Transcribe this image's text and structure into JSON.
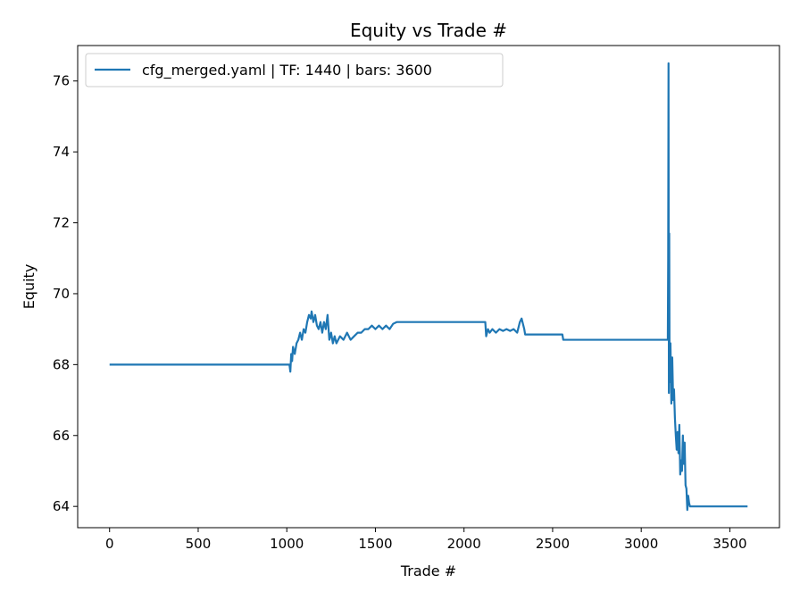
{
  "chart_data": {
    "type": "line",
    "title": "Equity vs Trade #",
    "xlabel": "Trade #",
    "ylabel": "Equity",
    "xlim": [
      -180,
      3780
    ],
    "ylim": [
      63.4,
      77.0
    ],
    "xticks": [
      0,
      500,
      1000,
      1500,
      2000,
      2500,
      3000,
      3500
    ],
    "yticks": [
      64,
      66,
      68,
      70,
      72,
      74,
      76
    ],
    "grid": false,
    "legend_position": "top-left",
    "colors": {
      "series": "#1f77b4"
    },
    "series": [
      {
        "name": "cfg_merged.yaml | TF: 1440 | bars: 3600",
        "points": [
          [
            0,
            68.0
          ],
          [
            1015,
            68.0
          ],
          [
            1020,
            67.8
          ],
          [
            1025,
            68.3
          ],
          [
            1030,
            68.1
          ],
          [
            1035,
            68.5
          ],
          [
            1045,
            68.3
          ],
          [
            1055,
            68.6
          ],
          [
            1065,
            68.7
          ],
          [
            1075,
            68.9
          ],
          [
            1085,
            68.7
          ],
          [
            1095,
            69.0
          ],
          [
            1105,
            68.9
          ],
          [
            1115,
            69.2
          ],
          [
            1125,
            69.4
          ],
          [
            1135,
            69.3
          ],
          [
            1140,
            69.5
          ],
          [
            1150,
            69.2
          ],
          [
            1160,
            69.4
          ],
          [
            1170,
            69.1
          ],
          [
            1180,
            69.0
          ],
          [
            1190,
            69.2
          ],
          [
            1200,
            68.9
          ],
          [
            1210,
            69.2
          ],
          [
            1220,
            69.0
          ],
          [
            1230,
            69.4
          ],
          [
            1240,
            68.7
          ],
          [
            1250,
            68.9
          ],
          [
            1260,
            68.6
          ],
          [
            1270,
            68.8
          ],
          [
            1280,
            68.6
          ],
          [
            1300,
            68.8
          ],
          [
            1320,
            68.7
          ],
          [
            1340,
            68.9
          ],
          [
            1360,
            68.7
          ],
          [
            1380,
            68.8
          ],
          [
            1400,
            68.9
          ],
          [
            1420,
            68.9
          ],
          [
            1440,
            69.0
          ],
          [
            1460,
            69.0
          ],
          [
            1480,
            69.1
          ],
          [
            1500,
            69.0
          ],
          [
            1520,
            69.1
          ],
          [
            1540,
            69.0
          ],
          [
            1560,
            69.1
          ],
          [
            1580,
            69.0
          ],
          [
            1600,
            69.15
          ],
          [
            1620,
            69.2
          ],
          [
            2120,
            69.2
          ],
          [
            2125,
            68.8
          ],
          [
            2135,
            69.0
          ],
          [
            2145,
            68.9
          ],
          [
            2160,
            69.0
          ],
          [
            2180,
            68.9
          ],
          [
            2200,
            69.0
          ],
          [
            2220,
            68.95
          ],
          [
            2240,
            69.0
          ],
          [
            2260,
            68.95
          ],
          [
            2280,
            69.0
          ],
          [
            2300,
            68.9
          ],
          [
            2315,
            69.2
          ],
          [
            2325,
            69.3
          ],
          [
            2340,
            69.0
          ],
          [
            2345,
            68.85
          ],
          [
            2555,
            68.85
          ],
          [
            2560,
            68.7
          ],
          [
            3150,
            68.7
          ],
          [
            3152,
            71.0
          ],
          [
            3154,
            76.5
          ],
          [
            3156,
            67.2
          ],
          [
            3158,
            71.7
          ],
          [
            3160,
            67.5
          ],
          [
            3165,
            68.6
          ],
          [
            3170,
            66.9
          ],
          [
            3175,
            68.2
          ],
          [
            3180,
            67.0
          ],
          [
            3185,
            67.3
          ],
          [
            3190,
            66.5
          ],
          [
            3195,
            66.0
          ],
          [
            3200,
            65.6
          ],
          [
            3205,
            66.1
          ],
          [
            3210,
            65.5
          ],
          [
            3215,
            66.3
          ],
          [
            3220,
            64.9
          ],
          [
            3225,
            65.3
          ],
          [
            3230,
            65.0
          ],
          [
            3235,
            66.0
          ],
          [
            3240,
            65.2
          ],
          [
            3245,
            65.8
          ],
          [
            3250,
            64.6
          ],
          [
            3255,
            64.5
          ],
          [
            3260,
            63.9
          ],
          [
            3265,
            64.3
          ],
          [
            3270,
            64.1
          ],
          [
            3275,
            64.0
          ],
          [
            3600,
            64.0
          ]
        ]
      }
    ]
  }
}
